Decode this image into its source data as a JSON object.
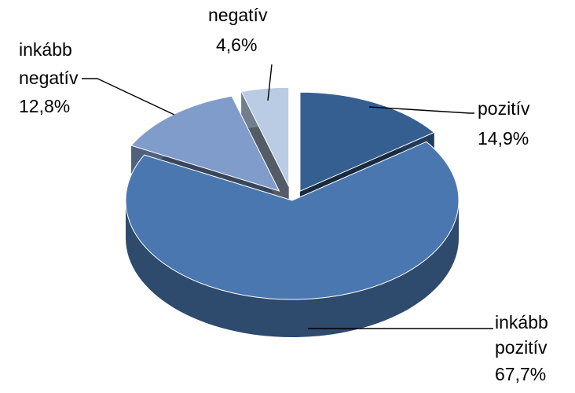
{
  "chart_data": {
    "type": "pie",
    "style": "3d-exploded",
    "slices": [
      {
        "label_lines": [
          "inkább",
          "pozitív"
        ],
        "value": 67.7,
        "value_text": "67,7%",
        "color": "#4a77b0"
      },
      {
        "label_lines": [
          "pozitív"
        ],
        "value": 14.9,
        "value_text": "14,9%",
        "color": "#365f91"
      },
      {
        "label_lines": [
          "negatív"
        ],
        "value": 4.6,
        "value_text": "4,6%",
        "color": "#b9cce4"
      },
      {
        "label_lines": [
          "inkább",
          "negatív"
        ],
        "value": 12.8,
        "value_text": "12,8%",
        "color": "#7f9ccb"
      }
    ]
  }
}
